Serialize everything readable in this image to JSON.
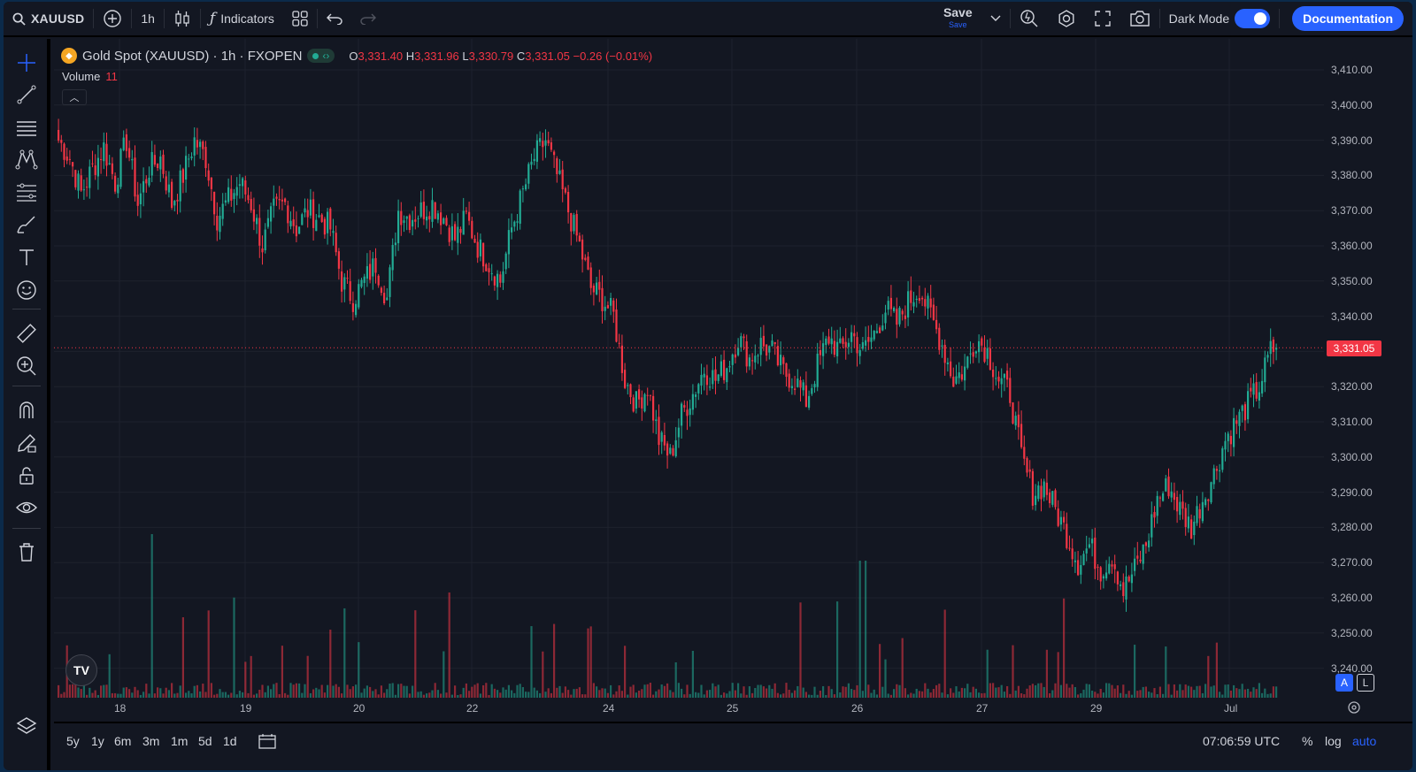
{
  "toolbar": {
    "symbol": "XAUUSD",
    "interval": "1h",
    "indicators_label": "Indicators",
    "save_label": "Save",
    "save_sub": "Save",
    "dark_mode_label": "Dark Mode",
    "documentation_label": "Documentation"
  },
  "legend": {
    "title": "Gold Spot (XAUUSD) · 1h · FXOPEN",
    "open_k": "O",
    "open": "3,331.40",
    "high_k": "H",
    "high": "3,331.96",
    "low_k": "L",
    "low": "3,330.79",
    "close_k": "C",
    "close": "3,331.05",
    "change": "−0.26 (−0.01%)",
    "volume_label": "Volume",
    "volume_value": "11"
  },
  "colors": {
    "up": "#22ab94",
    "down": "#f23645",
    "accent": "#2962ff",
    "bg": "#131722"
  },
  "price_axis": {
    "labels": [
      "3,410.00",
      "3,400.00",
      "3,390.00",
      "3,380.00",
      "3,370.00",
      "3,360.00",
      "3,350.00",
      "3,340.00",
      "3,330.00",
      "3,320.00",
      "3,310.00",
      "3,300.00",
      "3,290.00",
      "3,280.00",
      "3,270.00",
      "3,260.00",
      "3,250.00",
      "3,240.00"
    ],
    "last_price": "3,331.05",
    "btn_a": "A",
    "btn_l": "L"
  },
  "time_axis": {
    "labels": [
      "18",
      "19",
      "20",
      "22",
      "24",
      "25",
      "26",
      "27",
      "29",
      "Jul"
    ]
  },
  "bottom": {
    "ranges": [
      "5y",
      "1y",
      "6m",
      "3m",
      "1m",
      "5d",
      "1d"
    ],
    "clock": "07:06:59 UTC",
    "percent": "%",
    "log": "log",
    "auto": "auto"
  },
  "chart_data": {
    "type": "candlestick",
    "interval": "1h",
    "ylim": [
      3240,
      3412
    ],
    "anchors": [
      [
        0,
        3390
      ],
      [
        4,
        3385
      ],
      [
        8,
        3375
      ],
      [
        12,
        3382
      ],
      [
        16,
        3388
      ],
      [
        20,
        3378
      ],
      [
        24,
        3390
      ],
      [
        28,
        3372
      ],
      [
        32,
        3382
      ],
      [
        36,
        3385
      ],
      [
        40,
        3372
      ],
      [
        44,
        3380
      ],
      [
        48,
        3390
      ],
      [
        52,
        3385
      ],
      [
        56,
        3368
      ],
      [
        60,
        3373
      ],
      [
        64,
        3378
      ],
      [
        68,
        3372
      ],
      [
        72,
        3360
      ],
      [
        76,
        3370
      ],
      [
        80,
        3372
      ],
      [
        84,
        3365
      ],
      [
        88,
        3370
      ],
      [
        92,
        3368
      ],
      [
        96,
        3365
      ],
      [
        100,
        3350
      ],
      [
        104,
        3345
      ],
      [
        108,
        3350
      ],
      [
        112,
        3355
      ],
      [
        116,
        3345
      ],
      [
        120,
        3370
      ],
      [
        124,
        3368
      ],
      [
        128,
        3370
      ],
      [
        132,
        3372
      ],
      [
        136,
        3368
      ],
      [
        140,
        3362
      ],
      [
        144,
        3368
      ],
      [
        148,
        3360
      ],
      [
        152,
        3355
      ],
      [
        156,
        3350
      ],
      [
        160,
        3365
      ],
      [
        164,
        3375
      ],
      [
        168,
        3385
      ],
      [
        172,
        3390
      ],
      [
        176,
        3380
      ],
      [
        180,
        3370
      ],
      [
        184,
        3360
      ],
      [
        188,
        3348
      ],
      [
        192,
        3345
      ],
      [
        196,
        3340
      ],
      [
        200,
        3322
      ],
      [
        204,
        3315
      ],
      [
        208,
        3320
      ],
      [
        212,
        3305
      ],
      [
        216,
        3300
      ],
      [
        220,
        3312
      ],
      [
        224,
        3318
      ],
      [
        228,
        3325
      ],
      [
        232,
        3322
      ],
      [
        236,
        3326
      ],
      [
        240,
        3334
      ],
      [
        244,
        3328
      ],
      [
        248,
        3332
      ],
      [
        252,
        3330
      ],
      [
        256,
        3324
      ],
      [
        260,
        3322
      ],
      [
        264,
        3316
      ],
      [
        268,
        3326
      ],
      [
        272,
        3334
      ],
      [
        276,
        3330
      ],
      [
        280,
        3335
      ],
      [
        284,
        3330
      ],
      [
        288,
        3335
      ],
      [
        292,
        3342
      ],
      [
        296,
        3338
      ],
      [
        300,
        3344
      ],
      [
        304,
        3348
      ],
      [
        308,
        3340
      ],
      [
        312,
        3332
      ],
      [
        316,
        3322
      ],
      [
        320,
        3325
      ],
      [
        324,
        3334
      ],
      [
        328,
        3330
      ],
      [
        332,
        3322
      ],
      [
        336,
        3318
      ],
      [
        340,
        3300
      ],
      [
        344,
        3290
      ],
      [
        348,
        3292
      ],
      [
        352,
        3285
      ],
      [
        356,
        3278
      ],
      [
        360,
        3270
      ],
      [
        364,
        3275
      ],
      [
        368,
        3268
      ],
      [
        372,
        3272
      ],
      [
        376,
        3262
      ],
      [
        380,
        3268
      ],
      [
        384,
        3275
      ],
      [
        388,
        3288
      ],
      [
        392,
        3292
      ],
      [
        396,
        3285
      ],
      [
        400,
        3280
      ],
      [
        404,
        3288
      ],
      [
        408,
        3295
      ],
      [
        412,
        3305
      ],
      [
        416,
        3310
      ],
      [
        420,
        3315
      ],
      [
        424,
        3320
      ],
      [
        428,
        3330
      ],
      [
        430,
        3331.05
      ]
    ],
    "volume_max": 190
  }
}
